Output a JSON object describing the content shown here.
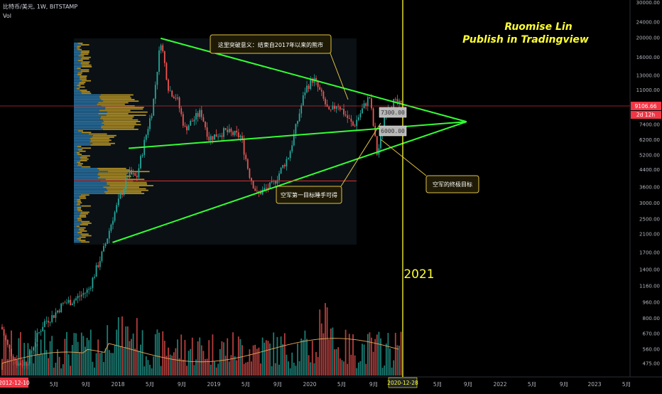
{
  "header": {
    "symbol_line": "比特币/美元, 1W, BITSTAMP",
    "indicator": "Vol"
  },
  "watermark": {
    "author": "Ruomise Lin",
    "subtitle": "Publish in Tradingview"
  },
  "annotations": {
    "breakout_note": "这里突破意义：结束自2017年以来的熊市",
    "first_target_note": "空军第一目标睡手可得",
    "final_target_note": "空军的终极目标",
    "year_marker": "2021",
    "target_7300": "7300.00",
    "target_6000": "6000.00"
  },
  "price_axis": {
    "current_price": "9106.66",
    "countdown": "2d 12h"
  },
  "time_axis": {
    "start_date_badge": "2012-12-10",
    "cursor_date_badge": "2020-12-28"
  },
  "colors": {
    "background": "#000000",
    "up": "#26a69a",
    "down": "#ef5350",
    "trendline": "#33ff33",
    "cursor": "#ffff33",
    "callout": "#e0c243",
    "volume_profile_up": "#2c7fb8",
    "volume_profile_down": "#c9a227",
    "price_badge": "#f23645",
    "ma_line": "#e8a85a"
  },
  "chart_data": {
    "type": "candlestick",
    "scale": "log",
    "ylim": [
      440,
      30000
    ],
    "y_ticks": [
      475,
      560,
      670,
      800,
      960,
      1160,
      1400,
      1700,
      2100,
      2500,
      3000,
      3600,
      4400,
      5200,
      6200,
      7400,
      9000,
      11000,
      13000,
      16000,
      20000,
      24000,
      30000
    ],
    "y_tick_labels": [
      "475.00",
      "560.00",
      "670.00",
      "800.00",
      "960.00",
      "1160.00",
      "1400.00",
      "1700.00",
      "2100.00",
      "2500.00",
      "3000.00",
      "3600.00",
      "4400.00",
      "5200.00",
      "6200.00",
      "7400.00",
      "9000.00",
      "11000.00",
      "13000.00",
      "16000.00",
      "20000.00",
      "24000.00",
      "30000.00"
    ],
    "x_tick_labels": [
      "5月",
      "9月",
      "2018",
      "5月",
      "9月",
      "2019",
      "5月",
      "9月",
      "2020",
      "5月",
      "9月",
      "2021",
      "5月",
      "9月",
      "2022",
      "5月",
      "9月",
      "2023",
      "5月"
    ],
    "price_path": [
      [
        "2017-01",
        970
      ],
      [
        "2017-03",
        1100
      ],
      [
        "2017-05",
        1800
      ],
      [
        "2017-06",
        2500
      ],
      [
        "2017-08",
        4200
      ],
      [
        "2017-09",
        4000
      ],
      [
        "2017-10",
        6100
      ],
      [
        "2017-11",
        9000
      ],
      [
        "2017-12",
        19500
      ],
      [
        "2018-01",
        11000
      ],
      [
        "2018-02",
        10000
      ],
      [
        "2018-03",
        7000
      ],
      [
        "2018-05",
        8500
      ],
      [
        "2018-06",
        6300
      ],
      [
        "2018-08",
        6800
      ],
      [
        "2018-10",
        6400
      ],
      [
        "2018-11",
        4200
      ],
      [
        "2018-12",
        3300
      ],
      [
        "2019-02",
        3700
      ],
      [
        "2019-04",
        5200
      ],
      [
        "2019-06",
        11000
      ],
      [
        "2019-07",
        12500
      ],
      [
        "2019-08",
        10400
      ],
      [
        "2019-09",
        8300
      ],
      [
        "2019-10",
        9400
      ],
      [
        "2019-12",
        7200
      ],
      [
        "2020-02",
        10200
      ],
      [
        "2020-03",
        5100
      ],
      [
        "2020-04",
        8800
      ],
      [
        "2020-05",
        9500
      ],
      [
        "2020-06",
        9106
      ]
    ],
    "trendlines": [
      {
        "from": [
          "2017-12",
          19800
        ],
        "to": [
          "2020-11",
          7600
        ]
      },
      {
        "from": [
          "2017-06",
          1900
        ],
        "to": [
          "2020-11",
          7600
        ]
      },
      {
        "from": [
          "2017-08",
          5600
        ],
        "to": [
          "2020-11",
          7600
        ]
      }
    ],
    "horizontal_levels": [
      3850,
      9106
    ]
  }
}
